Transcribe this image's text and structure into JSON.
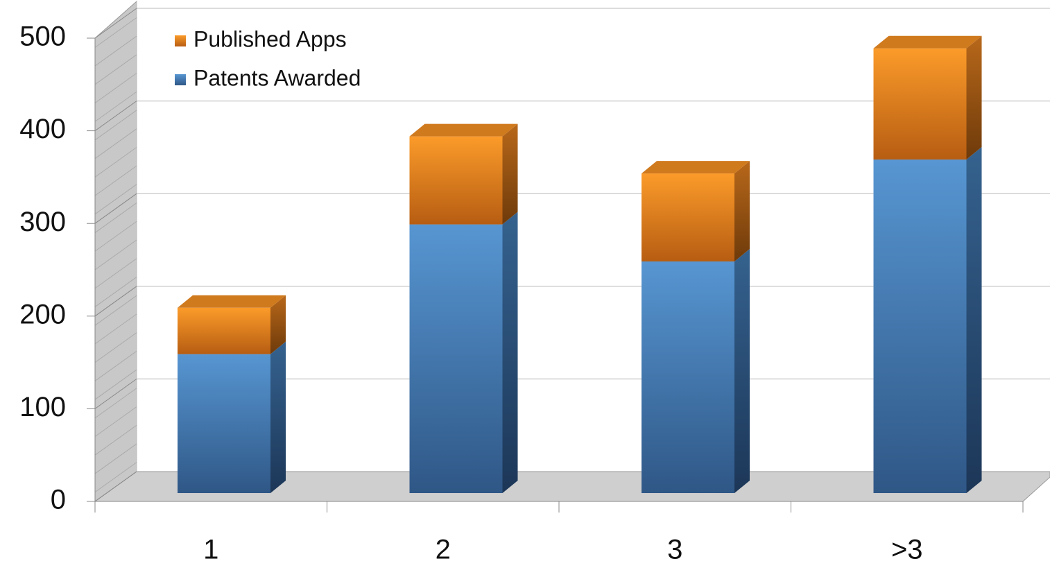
{
  "chart_data": {
    "type": "bar3d_stacked",
    "categories": [
      "1",
      "2",
      "3",
      ">3"
    ],
    "series": [
      {
        "name": "Patents Awarded",
        "color": "#4a86c5",
        "values": [
          150,
          290,
          250,
          360
        ]
      },
      {
        "name": "Published Apps",
        "color": "#f7941d",
        "values": [
          50,
          95,
          95,
          120
        ]
      }
    ],
    "ylim": [
      0,
      500
    ],
    "yticks": [
      0,
      100,
      200,
      300,
      400,
      500
    ],
    "grid": true,
    "legend": "top-left"
  }
}
